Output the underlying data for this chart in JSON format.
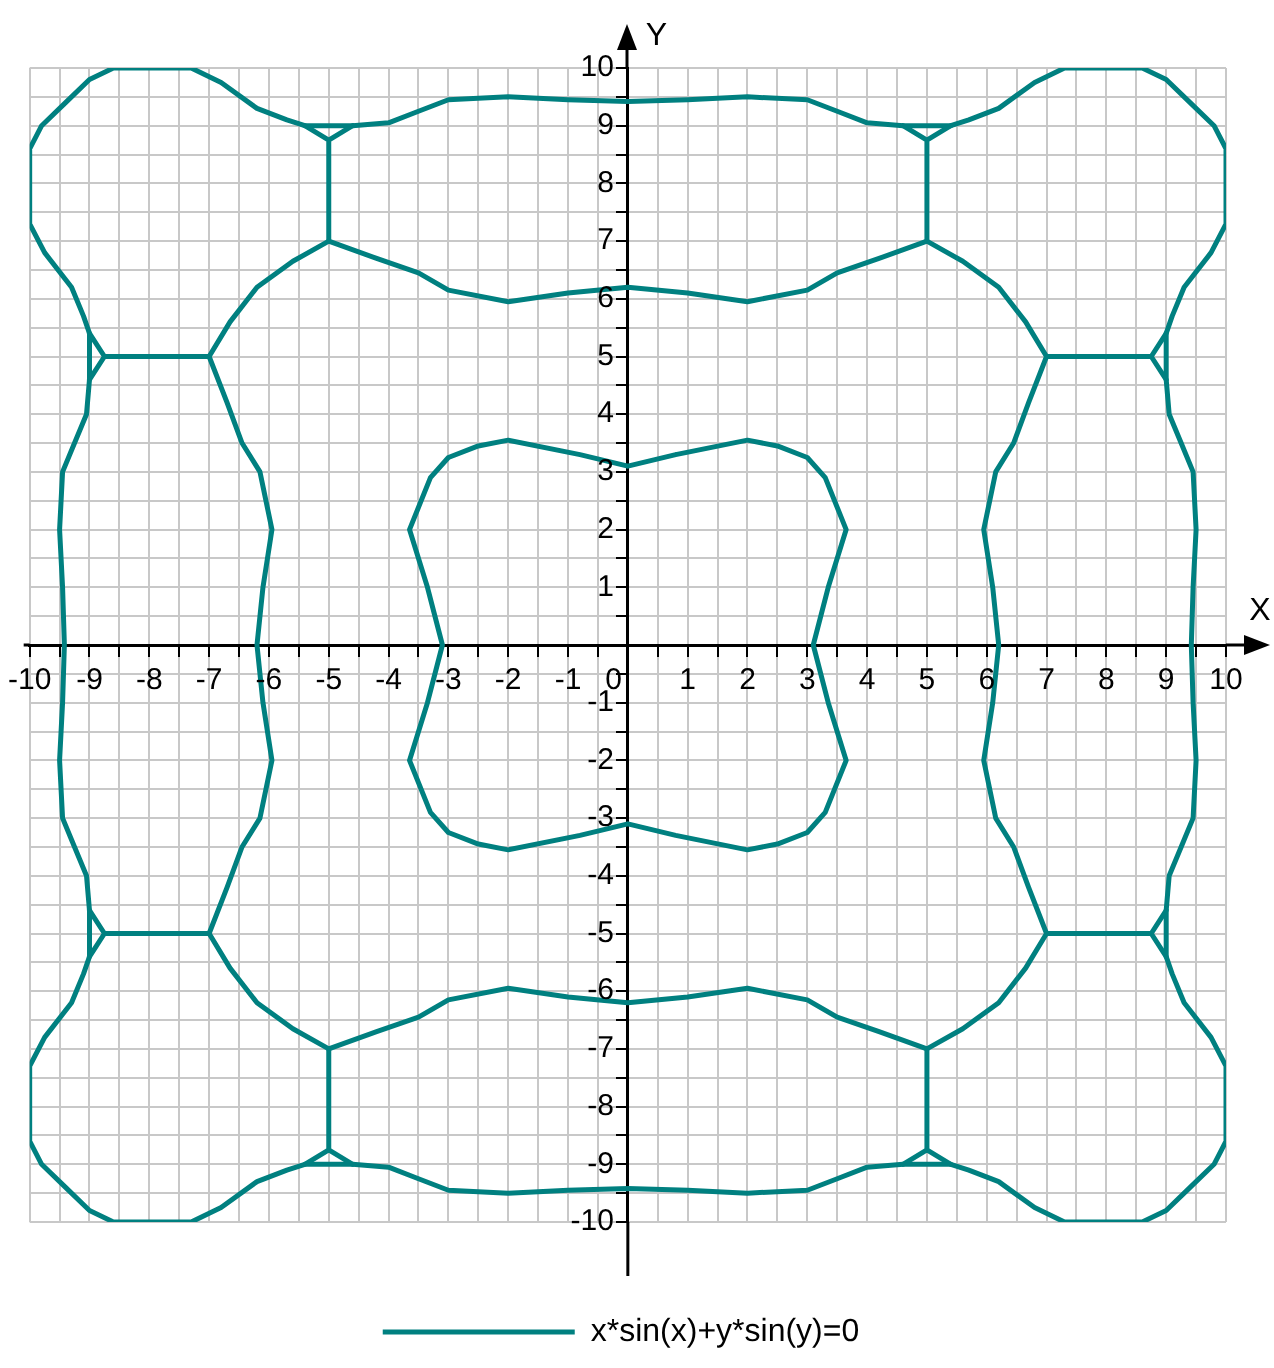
{
  "chart_data": {
    "type": "line",
    "xlabel": "X",
    "ylabel": "Y",
    "xlim": [
      -10,
      10
    ],
    "ylim": [
      -10,
      10
    ],
    "xticks": [
      -10,
      {
        "value": -9.5,
        "label": null
      },
      -9,
      {
        "value": -8.5,
        "label": null
      },
      -8,
      {
        "value": -7.5,
        "label": null
      },
      -7,
      {
        "value": -6.5,
        "label": null
      },
      -6,
      {
        "value": -5.5,
        "label": null
      },
      -5,
      {
        "value": -4.5,
        "label": null
      },
      -4,
      {
        "value": -3.5,
        "label": null
      },
      -3,
      {
        "value": -2.5,
        "label": null
      },
      -2,
      {
        "value": -1.5,
        "label": null
      },
      -1,
      {
        "value": -0.5,
        "label": null
      },
      0,
      {
        "value": 0.5,
        "label": null
      },
      1,
      {
        "value": 1.5,
        "label": null
      },
      2,
      {
        "value": 2.5,
        "label": null
      },
      3,
      {
        "value": 3.5,
        "label": null
      },
      4,
      {
        "value": 4.5,
        "label": null
      },
      5,
      {
        "value": 5.5,
        "label": null
      },
      6,
      {
        "value": 6.5,
        "label": null
      },
      7,
      {
        "value": 7.5,
        "label": null
      },
      8,
      {
        "value": 8.5,
        "label": null
      },
      9,
      {
        "value": 9.5,
        "label": null
      },
      10
    ],
    "yticks": [
      -10,
      {
        "value": -9.5,
        "label": null
      },
      -9,
      {
        "value": -8.5,
        "label": null
      },
      -8,
      {
        "value": -7.5,
        "label": null
      },
      -7,
      {
        "value": -6.5,
        "label": null
      },
      -6,
      {
        "value": -5.5,
        "label": null
      },
      -5,
      {
        "value": -4.5,
        "label": null
      },
      -4,
      {
        "value": -3.5,
        "label": null
      },
      -3,
      {
        "value": -2.5,
        "label": null
      },
      -2,
      {
        "value": -1.5,
        "label": null
      },
      -1,
      {
        "value": -0.5,
        "label": null
      },
      {
        "value": 0,
        "label": null
      },
      {
        "value": 0.5,
        "label": null
      },
      1,
      {
        "value": 1.5,
        "label": null
      },
      2,
      {
        "value": 2.5,
        "label": null
      },
      3,
      {
        "value": 3.5,
        "label": null
      },
      4,
      {
        "value": 4.5,
        "label": null
      },
      5,
      {
        "value": 5.5,
        "label": null
      },
      6,
      {
        "value": 6.5,
        "label": null
      },
      7,
      {
        "value": 7.5,
        "label": null
      },
      8,
      {
        "value": 8.5,
        "label": null
      },
      9,
      {
        "value": 9.5,
        "label": null
      },
      10
    ],
    "grid": true,
    "legend": "bottom",
    "series": [
      {
        "name": "x*sin(x)+y*sin(y)=0",
        "color": "#008080",
        "x": [
          0,
          0.8,
          2,
          2.5,
          3,
          3.3,
          3.65,
          3.35,
          3.1,
          3.35,
          3.65,
          3.3,
          3,
          2.5,
          2,
          0.8,
          0,
          -0.8,
          -2,
          -2.5,
          -3,
          -3.3,
          -3.65,
          -3.35,
          -3.1,
          -3.35,
          -3.65,
          -3.3,
          -3,
          -2.5,
          -2,
          -0.8,
          0,
          0.8,
          null,
          -5,
          -4.2,
          -3.5,
          -3,
          -2,
          -1,
          0,
          1,
          2,
          3,
          3.5,
          4.2,
          5,
          5.6,
          6.2,
          6.65,
          7,
          6.7,
          6.45,
          6.15,
          5.95,
          6.1,
          6.2,
          6.1,
          5.95,
          6.15,
          6.45,
          6.7,
          7,
          6.65,
          6.2,
          5.6,
          5,
          4.2,
          3.5,
          3,
          2,
          1,
          0,
          -1,
          -2,
          -3,
          -3.5,
          -4.2,
          -5,
          -5.6,
          -6.2,
          -6.65,
          -7,
          -6.7,
          -6.45,
          -6.15,
          -5.95,
          -6.1,
          -6.2,
          -6.1,
          -5.95,
          -6.15,
          -6.45,
          -6.7,
          -7,
          -6.65,
          -6.2,
          -5.6,
          -5,
          -4.2,
          null,
          -4.6,
          -4,
          -3.5,
          -3,
          -2,
          -1,
          0,
          1,
          2,
          3,
          3.5,
          4,
          4.6,
          5.4,
          5.7,
          6.2,
          6.8,
          7.3,
          8.6,
          9,
          9.4,
          9.8,
          10,
          10,
          9.75,
          9.3,
          9.1,
          9,
          9,
          9.05,
          9.25,
          9.45,
          9.5,
          9.45,
          9.42,
          9.45,
          9.5,
          9.45,
          9.25,
          9.05,
          9,
          9,
          9.1,
          9.3,
          9.75,
          10,
          10,
          9.8,
          9.4,
          9,
          8.6,
          7.3,
          6.8,
          6.2,
          5.7,
          5.4,
          4.6,
          4,
          3.5,
          3,
          2,
          1,
          0,
          -1,
          -2,
          -3,
          -3.5,
          -4,
          -4.6,
          -5.4,
          -5.7,
          -6.2,
          -6.8,
          -7.3,
          -8.6,
          -9,
          -9.4,
          -9.8,
          -10,
          -10,
          -9.75,
          -9.3,
          -9.1,
          -9,
          -9,
          -9.05,
          -9.25,
          -9.45,
          -9.5,
          -9.45,
          -9.42,
          -9.45,
          -9.5,
          -9.45,
          -9.25,
          -9.05,
          -9,
          -9,
          -9.1,
          -9.3,
          -9.75,
          -10,
          -10,
          -9.8,
          -9.4,
          -9,
          -8.6,
          -7.3,
          -6.8,
          -6.2,
          -5.7,
          -5.4,
          -4.6,
          -4,
          null,
          -4.6,
          -5,
          -5,
          -5,
          -5.4,
          null,
          4.6,
          5,
          5,
          5,
          5.4,
          null,
          9,
          8.75,
          7,
          8.75,
          9,
          null,
          9,
          8.75,
          7,
          8.75,
          9,
          null,
          5.4,
          5,
          5,
          5,
          4.6,
          null,
          -4.6,
          -5,
          -5,
          -5,
          -5.4,
          null,
          -9,
          -8.75,
          -7,
          -8.75,
          -9,
          null,
          -9,
          -8.75,
          -7,
          -8.75,
          -9
        ],
        "values": [
          3.1,
          3.3,
          3.55,
          3.45,
          3.25,
          2.9,
          2,
          1,
          0,
          -1,
          -2,
          -2.9,
          -3.25,
          -3.45,
          -3.55,
          -3.3,
          -3.1,
          -3.3,
          -3.55,
          -3.45,
          -3.25,
          -2.9,
          -2,
          -1,
          0,
          1,
          2,
          2.9,
          3.25,
          3.45,
          3.55,
          3.3,
          3.1,
          3.3,
          null,
          7,
          6.7,
          6.45,
          6.15,
          5.95,
          6.1,
          6.2,
          6.1,
          5.95,
          6.15,
          6.45,
          6.7,
          7,
          6.65,
          6.2,
          5.6,
          5,
          4.2,
          3.5,
          3,
          2,
          1,
          0,
          -1,
          -2,
          -3,
          -3.5,
          -4.2,
          -5,
          -5.6,
          -6.2,
          -6.65,
          -7,
          -6.7,
          -6.45,
          -6.15,
          -5.95,
          -6.1,
          -6.2,
          -6.1,
          -5.95,
          -6.15,
          -6.45,
          -6.7,
          -7,
          -6.65,
          -6.2,
          -5.6,
          -5,
          -4.2,
          -3.5,
          -3,
          -2,
          -1,
          0,
          1,
          2,
          3,
          3.5,
          4.2,
          5,
          5.6,
          6.2,
          6.65,
          7,
          6.7,
          null,
          9,
          9.05,
          9.25,
          9.45,
          9.5,
          9.45,
          9.42,
          9.45,
          9.5,
          9.45,
          9.25,
          9.05,
          9,
          9,
          9.1,
          9.3,
          9.75,
          10,
          10,
          9.8,
          9.4,
          9,
          8.6,
          7.3,
          6.8,
          6.2,
          5.7,
          5.4,
          4.6,
          4,
          3.5,
          3,
          2,
          1,
          0,
          -1,
          -2,
          -3,
          -3.5,
          -4,
          -4.6,
          -5.4,
          -5.7,
          -6.2,
          -6.8,
          -7.3,
          -8.6,
          -9,
          -9.4,
          -9.8,
          -10,
          -10,
          -9.75,
          -9.3,
          -9.1,
          -9,
          -9,
          -9.05,
          -9.25,
          -9.45,
          -9.5,
          -9.45,
          -9.42,
          -9.45,
          -9.5,
          -9.45,
          -9.25,
          -9.05,
          -9,
          -9,
          -9.1,
          -9.3,
          -9.75,
          -10,
          -10,
          -9.8,
          -9.4,
          -9,
          -8.6,
          -7.3,
          -6.8,
          -6.2,
          -5.7,
          -5.4,
          -4.6,
          -4,
          -3.5,
          -3,
          -2,
          -1,
          0,
          1,
          2,
          3,
          3.5,
          4,
          4.6,
          5.4,
          5.7,
          6.2,
          6.8,
          7.3,
          8.6,
          9,
          9.4,
          9.8,
          10,
          10,
          9.75,
          9.3,
          9.1,
          9,
          9,
          9.05,
          null,
          9,
          8.75,
          7,
          8.75,
          9,
          null,
          9,
          8.75,
          7,
          8.75,
          9,
          null,
          5.4,
          5,
          5,
          5,
          4.6,
          null,
          -4.6,
          -5,
          -5,
          -5,
          -5.4,
          null,
          -9,
          -8.75,
          -7,
          -8.75,
          -9,
          null,
          -9,
          -8.75,
          -7,
          -8.75,
          -9,
          null,
          -5.4,
          -5,
          -5,
          -5,
          -4.6,
          null,
          4.6,
          5,
          5,
          5,
          5.4
        ]
      }
    ]
  }
}
